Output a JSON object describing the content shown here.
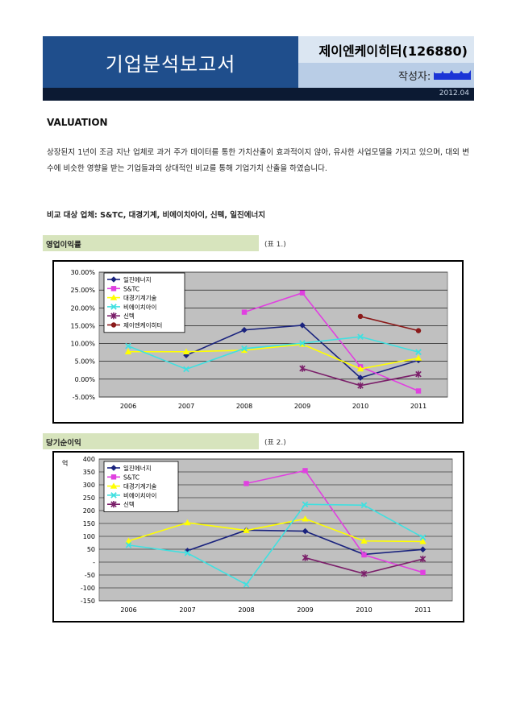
{
  "header": {
    "title": "기업분석보고서",
    "company": "제이엔케이히터(126880)",
    "author_label": "작성자:",
    "date": "2012.04"
  },
  "section": {
    "title": "VALUATION",
    "paragraph": "상장된지 1년이 조금 지난 업체로 과거 주가 데이터를 통한 가치산출이 효과적이지 않아, 유사한 사업모델을 가지고 있으며, 대외 변수에 비슷한 영향을 받는 기업들과의 상대적인 비교를 통해 기업가치 산출을 하였습니다.",
    "comparison": "비교 대상 업체: S&TC, 대경기계, 비에이치아이, 신텍, 일진에너지"
  },
  "tables": [
    {
      "title": "영업이익률",
      "label": "(표 1.)"
    },
    {
      "title": "당기순이익",
      "label": "(표 2.)"
    }
  ],
  "chart_data": [
    {
      "type": "line",
      "title": "영업이익률",
      "categories": [
        "2006",
        "2007",
        "2008",
        "2009",
        "2010",
        "2011"
      ],
      "ylim": [
        -5,
        30
      ],
      "yticks": [
        "30.00%",
        "25.00%",
        "20.00%",
        "15.00%",
        "10.00%",
        "5.00%",
        "0.00%",
        "-5.00%"
      ],
      "grid": true,
      "legend_position": "top-left",
      "series": [
        {
          "name": "일진에너지",
          "color": "#1a237e",
          "marker": "diamond",
          "values": [
            null,
            6.7,
            13.8,
            15.1,
            0.4,
            5.3
          ]
        },
        {
          "name": "S&TC",
          "color": "#e040e0",
          "marker": "square",
          "values": [
            null,
            null,
            18.8,
            24.2,
            3.5,
            -3.3
          ]
        },
        {
          "name": "대경기계기술",
          "color": "#ffff00",
          "marker": "triangle",
          "values": [
            7.7,
            7.7,
            8.1,
            9.8,
            2.9,
            5.9
          ]
        },
        {
          "name": "비에이치아이",
          "color": "#40e0e0",
          "marker": "x",
          "values": [
            9.3,
            2.8,
            8.6,
            10.1,
            11.9,
            7.6
          ]
        },
        {
          "name": "신텍",
          "color": "#7b1f6a",
          "marker": "star",
          "values": [
            null,
            null,
            null,
            3.0,
            -1.8,
            1.4
          ]
        },
        {
          "name": "제이엔케이히터",
          "color": "#8b1a1a",
          "marker": "circle",
          "values": [
            null,
            null,
            null,
            null,
            17.6,
            13.6
          ]
        }
      ]
    },
    {
      "type": "line",
      "title": "당기순이익",
      "categories": [
        "2006",
        "2007",
        "2008",
        "2009",
        "2010",
        "2011"
      ],
      "unit": "억",
      "ylim": [
        -150,
        400
      ],
      "yticks": [
        "400",
        "350",
        "300",
        "250",
        "200",
        "150",
        "100",
        "50",
        "-",
        "-50",
        "-100",
        "-150"
      ],
      "grid": true,
      "legend_position": "top-left",
      "series": [
        {
          "name": "일진에너지",
          "color": "#1a237e",
          "marker": "diamond",
          "values": [
            null,
            44,
            124,
            120,
            30,
            49
          ]
        },
        {
          "name": "S&TC",
          "color": "#e040e0",
          "marker": "square",
          "values": [
            null,
            null,
            305,
            355,
            28,
            -40
          ]
        },
        {
          "name": "대경기계기술",
          "color": "#ffff00",
          "marker": "triangle",
          "values": [
            82,
            153,
            123,
            168,
            82,
            80
          ]
        },
        {
          "name": "비에이치아이",
          "color": "#40e0e0",
          "marker": "x",
          "values": [
            66,
            35,
            -87,
            224,
            221,
            96
          ]
        },
        {
          "name": "신텍",
          "color": "#7b1f6a",
          "marker": "star",
          "values": [
            null,
            null,
            null,
            17,
            -45,
            12
          ]
        }
      ]
    }
  ]
}
